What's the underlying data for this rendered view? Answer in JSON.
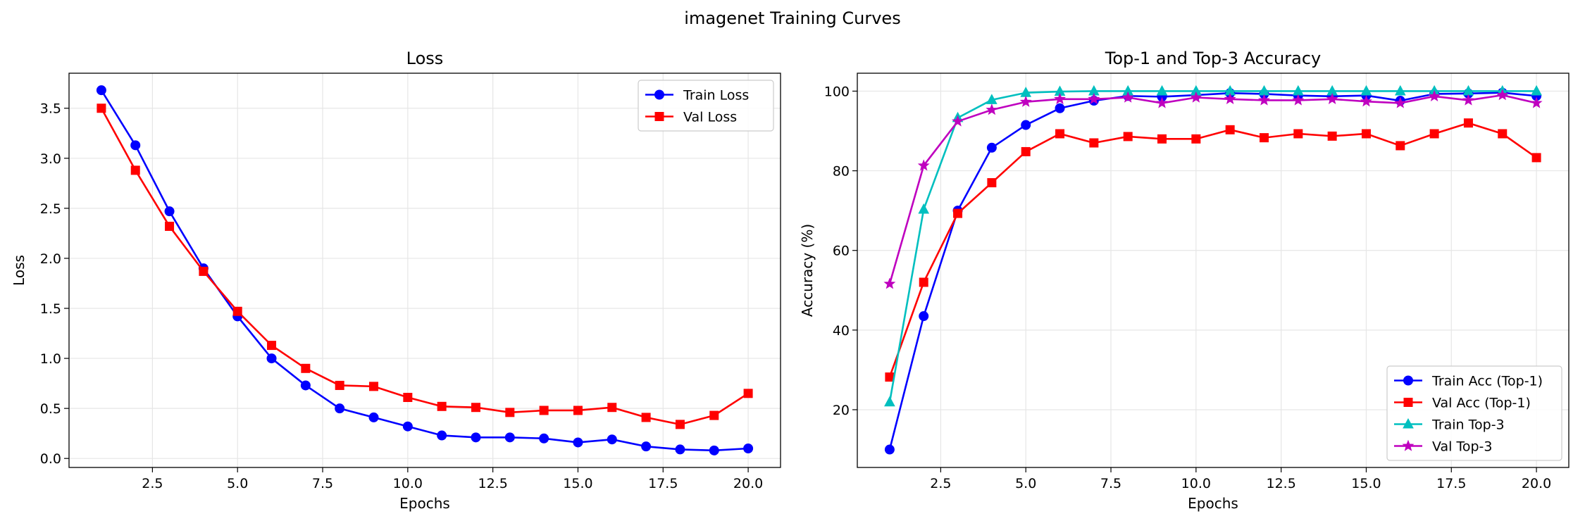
{
  "suptitle": "imagenet Training Curves",
  "chart_data": [
    {
      "type": "line",
      "title": "Loss",
      "xlabel": "Epochs",
      "ylabel": "Loss",
      "xlim": [
        0.05,
        20.95
      ],
      "ylim": [
        -0.09,
        3.85
      ],
      "xticks": [
        2.5,
        5.0,
        7.5,
        10.0,
        12.5,
        15.0,
        17.5,
        20.0
      ],
      "xtick_labels": [
        "2.5",
        "5.0",
        "7.5",
        "10.0",
        "12.5",
        "15.0",
        "17.5",
        "20.0"
      ],
      "yticks": [
        0.0,
        0.5,
        1.0,
        1.5,
        2.0,
        2.5,
        3.0,
        3.5
      ],
      "ytick_labels": [
        "0.0",
        "0.5",
        "1.0",
        "1.5",
        "2.0",
        "2.5",
        "3.0",
        "3.5"
      ],
      "grid": true,
      "legend": "top-right",
      "x": [
        1,
        2,
        3,
        4,
        5,
        6,
        7,
        8,
        9,
        10,
        11,
        12,
        13,
        14,
        15,
        16,
        17,
        18,
        19,
        20
      ],
      "series": [
        {
          "name": "Train Loss",
          "color": "#0000ff",
          "marker": "circle",
          "values": [
            3.68,
            3.13,
            2.47,
            1.9,
            1.42,
            1.0,
            0.73,
            0.5,
            0.41,
            0.32,
            0.23,
            0.21,
            0.21,
            0.2,
            0.16,
            0.19,
            0.12,
            0.09,
            0.08,
            0.1
          ]
        },
        {
          "name": "Val Loss",
          "color": "#ff0000",
          "marker": "square",
          "values": [
            3.5,
            2.88,
            2.32,
            1.87,
            1.47,
            1.13,
            0.9,
            0.73,
            0.72,
            0.61,
            0.52,
            0.51,
            0.46,
            0.48,
            0.48,
            0.51,
            0.41,
            0.34,
            0.43,
            0.65
          ]
        }
      ]
    },
    {
      "type": "line",
      "title": "Top-1 and Top-3 Accuracy",
      "xlabel": "Epochs",
      "ylabel": "Accuracy (%)",
      "xlim": [
        0.05,
        20.95
      ],
      "ylim": [
        5.5,
        104.5
      ],
      "xticks": [
        2.5,
        5.0,
        7.5,
        10.0,
        12.5,
        15.0,
        17.5,
        20.0
      ],
      "xtick_labels": [
        "2.5",
        "5.0",
        "7.5",
        "10.0",
        "12.5",
        "15.0",
        "17.5",
        "20.0"
      ],
      "yticks": [
        20,
        40,
        60,
        80,
        100
      ],
      "ytick_labels": [
        "20",
        "40",
        "60",
        "80",
        "100"
      ],
      "grid": true,
      "legend": "bottom-right",
      "x": [
        1,
        2,
        3,
        4,
        5,
        6,
        7,
        8,
        9,
        10,
        11,
        12,
        13,
        14,
        15,
        16,
        17,
        18,
        19,
        20
      ],
      "series": [
        {
          "name": "Train Acc (Top-1)",
          "color": "#0000ff",
          "marker": "circle",
          "values": [
            10.0,
            43.5,
            70.0,
            85.8,
            91.5,
            95.7,
            97.6,
            98.8,
            98.6,
            99.0,
            99.5,
            99.3,
            98.9,
            98.7,
            98.9,
            97.6,
            99.3,
            99.4,
            99.6,
            98.8
          ]
        },
        {
          "name": "Val Acc (Top-1)",
          "color": "#ff0000",
          "marker": "square",
          "values": [
            28.2,
            52.0,
            69.3,
            77.0,
            84.8,
            89.3,
            87.0,
            88.6,
            88.0,
            88.0,
            90.3,
            88.3,
            89.3,
            88.7,
            89.3,
            86.3,
            89.3,
            92.0,
            89.3,
            83.3
          ]
        },
        {
          "name": "Train Top-3",
          "color": "#00bfbf",
          "marker": "triangle",
          "values": [
            21.9,
            70.3,
            93.3,
            97.8,
            99.6,
            99.9,
            100,
            100,
            100,
            100,
            100,
            100,
            100,
            100,
            100,
            100,
            100,
            100,
            100,
            100
          ]
        },
        {
          "name": "Val Top-3",
          "color": "#bf00bf",
          "marker": "star",
          "values": [
            51.6,
            81.3,
            92.4,
            95.3,
            97.3,
            98.0,
            98.0,
            98.4,
            97.0,
            98.4,
            98.0,
            97.7,
            97.7,
            98.0,
            97.4,
            97.0,
            98.7,
            97.7,
            99.0,
            97.0
          ]
        }
      ]
    }
  ]
}
